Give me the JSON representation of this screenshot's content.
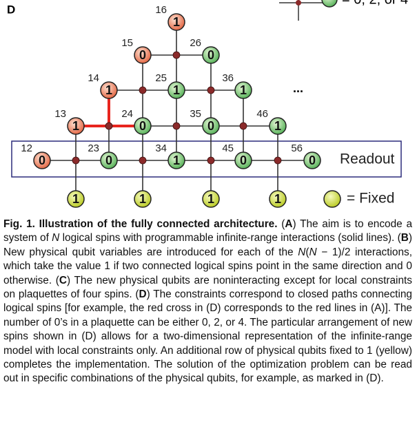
{
  "figure": {
    "panel": "D",
    "legend_top": "= 0, 2, or 4",
    "ellipsis": "...",
    "readout": "Readout",
    "fixed_legend": "= Fixed",
    "nodes": [
      {
        "label": "16",
        "state": "1"
      },
      {
        "label": "15",
        "state": "0"
      },
      {
        "label": "26",
        "state": "0"
      },
      {
        "label": "14",
        "state": "1"
      },
      {
        "label": "25",
        "state": "1"
      },
      {
        "label": "36",
        "state": "1"
      },
      {
        "label": "13",
        "state": "1"
      },
      {
        "label": "24",
        "state": "0"
      },
      {
        "label": "35",
        "state": "0"
      },
      {
        "label": "46",
        "state": "1"
      },
      {
        "label": "12",
        "state": "0"
      },
      {
        "label": "23",
        "state": "0"
      },
      {
        "label": "34",
        "state": "1"
      },
      {
        "label": "45",
        "state": "0"
      },
      {
        "label": "56",
        "state": "0"
      }
    ],
    "fixed": [
      "1",
      "1",
      "1",
      "1"
    ]
  },
  "caption": {
    "segments": [
      "Fig. 1.  Illustration of the fully connected architecture.",
      " (",
      "A",
      ") The aim is to encode a system of ",
      "N",
      " logical spins with programmable infinite-range interactions (solid lines). (",
      "B",
      ") New physical qubit variables are introduced for each of the ",
      "N",
      "(",
      "N",
      " − 1)/2 interactions, which take the value 1 if two connected logical spins point in the same direction and 0 otherwise. (",
      "C",
      ") The new physical qubits are noninteracting except for local constraints on plaquettes of four spins. (",
      "D",
      ") The constraints correspond to closed paths connecting logical spins [for example, the red cross in (D) corresponds to the red lines in (A)]. The number of 0’s in a plaquette can be either 0, 2, or 4. The particular arrangement of new spins shown in (D) allows for a two-dimensional representation of the infinite-range model with local constraints only. An additional row of physical qubits fixed to 1 (yellow) completes the implementation. The solution of the optimization problem can be read out in specific combinations of the physical qubits, for example, as marked in (D)."
    ]
  }
}
